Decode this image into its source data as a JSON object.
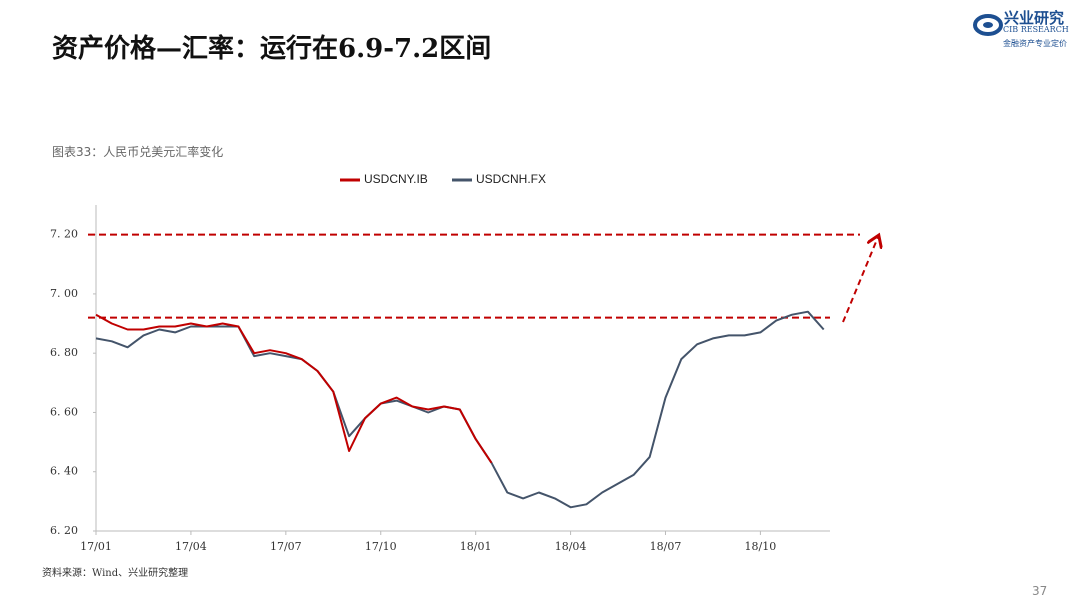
{
  "header": {
    "title": "资产价格—汇率：运行在6.9-7.2区间",
    "logo_cn": "兴业研究",
    "logo_en": "CIB RESEARCH",
    "logo_slogan": "金融资产专业定价"
  },
  "chart_data": {
    "type": "line",
    "title": "图表33：人民币兑美元汇率变化",
    "x": [
      0,
      0.5,
      1,
      1.5,
      2,
      2.5,
      3,
      3.5,
      4,
      4.5,
      5,
      5.5,
      6,
      6.5,
      7,
      7.5,
      8,
      8.5,
      9,
      9.5,
      10,
      10.5,
      11,
      11.5,
      12,
      12.5,
      13,
      13.5,
      14,
      14.5,
      15,
      15.5,
      16,
      16.5,
      17,
      17.5,
      18,
      18.5,
      19,
      19.5,
      20,
      20.5,
      21,
      21.5,
      22,
      22.5,
      23
    ],
    "series": [
      {
        "name": "USDCNY.IB",
        "color": "#c00000",
        "values": [
          6.93,
          6.9,
          6.88,
          6.88,
          6.89,
          6.89,
          6.9,
          6.89,
          6.9,
          6.89,
          6.8,
          6.81,
          6.8,
          6.78,
          6.74,
          6.67,
          6.47,
          6.58,
          6.63,
          6.65,
          6.62,
          6.61,
          6.62,
          6.61,
          6.51,
          6.43,
          null,
          null,
          null,
          null,
          null,
          null,
          null,
          null,
          null,
          null,
          null,
          null,
          null,
          null,
          null,
          null,
          null,
          null,
          null,
          null,
          null
        ]
      },
      {
        "name": "USDCNH.FX",
        "color": "#44546a",
        "values": [
          6.85,
          6.84,
          6.82,
          6.86,
          6.88,
          6.87,
          6.89,
          6.89,
          6.89,
          6.89,
          6.79,
          6.8,
          6.79,
          6.78,
          6.74,
          6.67,
          6.52,
          6.58,
          6.63,
          6.64,
          6.62,
          6.6,
          6.62,
          6.61,
          6.51,
          6.43,
          6.33,
          6.31,
          6.33,
          6.31,
          6.28,
          6.29,
          6.33,
          6.36,
          6.39,
          6.45,
          6.65,
          6.78,
          6.83,
          6.85,
          6.86,
          6.86,
          6.87,
          6.91,
          6.93,
          6.94,
          6.88
        ]
      }
    ],
    "xlim": [
      0,
      23.2
    ],
    "xticks": [
      {
        "value": 0,
        "label": "17/01"
      },
      {
        "value": 3,
        "label": "17/04"
      },
      {
        "value": 6,
        "label": "17/07"
      },
      {
        "value": 9,
        "label": "17/10"
      },
      {
        "value": 12,
        "label": "18/01"
      },
      {
        "value": 15,
        "label": "18/04"
      },
      {
        "value": 18,
        "label": "18/07"
      },
      {
        "value": 21,
        "label": "18/10"
      }
    ],
    "ylim": [
      6.2,
      7.3
    ],
    "yticks": [
      {
        "value": 6.2,
        "label": "6. 20"
      },
      {
        "value": 6.4,
        "label": "6. 40"
      },
      {
        "value": 6.6,
        "label": "6. 60"
      },
      {
        "value": 6.8,
        "label": "6. 80"
      },
      {
        "value": 7.0,
        "label": "7. 00"
      },
      {
        "value": 7.2,
        "label": "7. 20"
      }
    ],
    "reference_lines": [
      6.92,
      7.2
    ],
    "reference_color": "#c00000",
    "legend": "top"
  },
  "footer": {
    "source": "资料来源：Wind、兴业研究整理",
    "page": "37"
  }
}
